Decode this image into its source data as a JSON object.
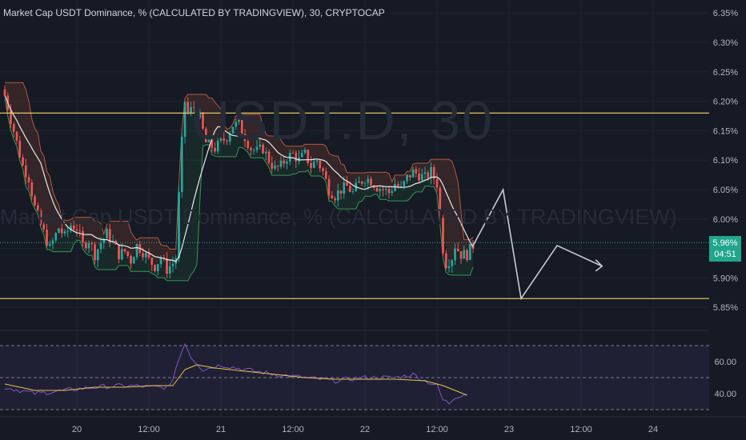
{
  "header": {
    "title": "Market Cap USDT Dominance, % (CALCULATED BY TRADINGVIEW), 30, CRYPTOCAP"
  },
  "watermark": {
    "symbol": "USDT.D, 30",
    "description": "Market Cap USDT Dominance, % (CALCULATED BY TRADINGVIEW)"
  },
  "price_badge": {
    "price": "5.96%",
    "countdown": "04:51"
  },
  "colors": {
    "background": "#161a25",
    "grid": "#1f2430",
    "up": "#26a69a",
    "down": "#ef5350",
    "level_line": "#f5d76e",
    "ma": "#e9e9e9",
    "rsi": "#7e57c2",
    "rsi_ma": "#e6c04a",
    "projection": "#c9ccd3",
    "trail_upper": "#b65a3a",
    "trail_lower": "#2e9b53"
  },
  "chart_data": [
    {
      "type": "candlestick",
      "title": "Market Cap USDT Dominance, % (CALCULATED BY TRADINGVIEW), 30, CRYPTOCAP",
      "y_unit": "%",
      "ylim": [
        5.815,
        6.372
      ],
      "y_ticks": [
        "6.35%",
        "6.30%",
        "6.25%",
        "6.20%",
        "6.15%",
        "6.10%",
        "6.05%",
        "6.00%",
        "5.95%",
        "5.90%",
        "5.85%"
      ],
      "y_tick_values": [
        6.35,
        6.3,
        6.25,
        6.2,
        6.15,
        6.1,
        6.05,
        6.0,
        5.95,
        5.9,
        5.85
      ],
      "x_tick_labels": [
        "20",
        "12:00",
        "21",
        "12:00",
        "22",
        "12:00",
        "23",
        "12:00",
        "24"
      ],
      "x_tick_bars": [
        24,
        48,
        72,
        96,
        120,
        144,
        168,
        192,
        216
      ],
      "bar_interval": "30",
      "current_price": 5.96,
      "horizontal_levels": [
        6.18,
        5.865
      ],
      "close_path": [
        [
          0,
          6.21
        ],
        [
          3,
          6.15
        ],
        [
          6,
          6.09
        ],
        [
          8,
          6.07
        ],
        [
          10,
          6.02
        ],
        [
          12,
          5.99
        ],
        [
          15,
          5.95
        ],
        [
          18,
          5.985
        ],
        [
          20,
          5.97
        ],
        [
          22,
          5.99
        ],
        [
          24,
          5.985
        ],
        [
          26,
          5.955
        ],
        [
          28,
          5.965
        ],
        [
          30,
          5.94
        ],
        [
          32,
          5.96
        ],
        [
          34,
          5.975
        ],
        [
          36,
          5.96
        ],
        [
          38,
          5.94
        ],
        [
          40,
          5.945
        ],
        [
          42,
          5.93
        ],
        [
          44,
          5.955
        ],
        [
          46,
          5.945
        ],
        [
          48,
          5.93
        ],
        [
          50,
          5.92
        ],
        [
          52,
          5.935
        ],
        [
          54,
          5.915
        ],
        [
          56,
          5.925
        ],
        [
          57,
          5.935
        ],
        [
          58,
          6.04
        ],
        [
          59,
          6.13
        ],
        [
          60,
          6.2
        ],
        [
          61,
          6.18
        ],
        [
          63,
          6.19
        ],
        [
          65,
          6.17
        ],
        [
          67,
          6.13
        ],
        [
          70,
          6.12
        ],
        [
          72,
          6.13
        ],
        [
          74,
          6.14
        ],
        [
          76,
          6.16
        ],
        [
          78,
          6.16
        ],
        [
          80,
          6.14
        ],
        [
          82,
          6.12
        ],
        [
          84,
          6.115
        ],
        [
          86,
          6.12
        ],
        [
          88,
          6.1
        ],
        [
          90,
          6.085
        ],
        [
          92,
          6.09
        ],
        [
          94,
          6.105
        ],
        [
          96,
          6.11
        ],
        [
          98,
          6.1
        ],
        [
          100,
          6.11
        ],
        [
          102,
          6.09
        ],
        [
          104,
          6.1
        ],
        [
          106,
          6.08
        ],
        [
          108,
          6.05
        ],
        [
          110,
          6.04
        ],
        [
          112,
          6.05
        ],
        [
          114,
          6.055
        ],
        [
          116,
          6.045
        ],
        [
          118,
          6.06
        ],
        [
          120,
          6.07
        ],
        [
          122,
          6.065
        ],
        [
          124,
          6.055
        ],
        [
          126,
          6.05
        ],
        [
          128,
          6.045
        ],
        [
          130,
          6.06
        ],
        [
          132,
          6.05
        ],
        [
          134,
          6.07
        ],
        [
          136,
          6.08
        ],
        [
          138,
          6.075
        ],
        [
          140,
          6.07
        ],
        [
          142,
          6.08
        ],
        [
          144,
          6.06
        ],
        [
          145,
          6.0
        ],
        [
          146,
          5.95
        ],
        [
          147,
          5.925
        ],
        [
          148,
          5.93
        ],
        [
          149,
          5.935
        ],
        [
          150,
          5.955
        ],
        [
          152,
          5.94
        ],
        [
          154,
          5.94
        ],
        [
          156,
          5.955
        ]
      ],
      "projection_path": [
        [
          156,
          5.955
        ],
        [
          166,
          6.05
        ],
        [
          172,
          5.865
        ],
        [
          184,
          5.955
        ],
        [
          199,
          5.92
        ],
        [
          195,
          5.92
        ],
        [
          199,
          5.92
        ],
        [
          196,
          5.93
        ]
      ]
    },
    {
      "type": "line",
      "series": [
        {
          "values_path": [
            [
              0,
              44
            ],
            [
              10,
              40
            ],
            [
              20,
              42
            ],
            [
              30,
              44
            ],
            [
              40,
              45
            ],
            [
              50,
              44
            ],
            [
              55,
              44
            ],
            [
              57,
              56
            ],
            [
              60,
              72
            ],
            [
              62,
              63
            ],
            [
              66,
              55
            ],
            [
              72,
              58
            ],
            [
              80,
              55
            ],
            [
              90,
              52
            ],
            [
              100,
              50
            ],
            [
              110,
              48
            ],
            [
              120,
              50
            ],
            [
              130,
              50
            ],
            [
              136,
              52
            ],
            [
              140,
              48
            ],
            [
              144,
              45
            ],
            [
              146,
              36
            ],
            [
              148,
              34
            ],
            [
              150,
              38
            ],
            [
              154,
              40
            ]
          ]
        },
        {
          "values_path": [
            [
              0,
              46
            ],
            [
              10,
              42
            ],
            [
              20,
              42
            ],
            [
              30,
              44
            ],
            [
              40,
              44
            ],
            [
              50,
              45
            ],
            [
              56,
              45
            ],
            [
              60,
              55
            ],
            [
              64,
              58
            ],
            [
              70,
              56
            ],
            [
              80,
              54
            ],
            [
              90,
              52
            ],
            [
              100,
              50
            ],
            [
              110,
              49
            ],
            [
              120,
              49
            ],
            [
              130,
              49
            ],
            [
              140,
              48
            ],
            [
              146,
              45
            ],
            [
              150,
              42
            ],
            [
              154,
              39
            ]
          ]
        }
      ],
      "ylim": [
        26,
        78
      ],
      "y_ticks": [
        "60.00",
        "40.00"
      ],
      "y_tick_values": [
        60,
        40
      ],
      "bands": [
        70,
        50,
        30
      ]
    }
  ]
}
